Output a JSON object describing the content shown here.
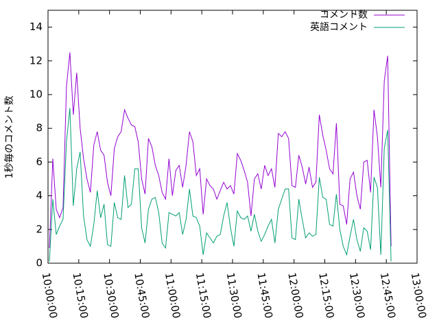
{
  "chart_data": {
    "type": "line",
    "y_label": "1秒毎のコメント数",
    "x": [
      "10:00:40",
      "10:02:20",
      "10:04:00",
      "10:05:40",
      "10:07:20",
      "10:09:00",
      "10:10:40",
      "10:12:20",
      "10:14:00",
      "10:15:40",
      "10:17:20",
      "10:19:00",
      "10:20:40",
      "10:22:20",
      "10:24:00",
      "10:25:40",
      "10:27:20",
      "10:29:00",
      "10:30:40",
      "10:32:20",
      "10:34:00",
      "10:35:40",
      "10:37:20",
      "10:39:00",
      "10:40:40",
      "10:42:20",
      "10:44:00",
      "10:45:40",
      "10:47:20",
      "10:49:00",
      "10:50:40",
      "10:52:20",
      "10:54:00",
      "10:55:40",
      "10:57:20",
      "10:59:00",
      "11:00:40",
      "11:02:20",
      "11:04:00",
      "11:05:40",
      "11:07:20",
      "11:09:00",
      "11:10:40",
      "11:12:20",
      "11:14:00",
      "11:15:40",
      "11:17:20",
      "11:19:00",
      "11:20:40",
      "11:22:20",
      "11:24:00",
      "11:25:40",
      "11:27:20",
      "11:29:00",
      "11:30:40",
      "11:32:20",
      "11:34:00",
      "11:35:40",
      "11:37:20",
      "11:39:00",
      "11:40:40",
      "11:42:20",
      "11:44:00",
      "11:45:40",
      "11:47:20",
      "11:49:00",
      "11:50:40",
      "11:52:20",
      "11:54:00",
      "11:55:40",
      "11:57:20",
      "11:59:00",
      "12:00:40",
      "12:02:20",
      "12:04:00",
      "12:05:40",
      "12:07:20",
      "12:09:00",
      "12:10:40",
      "12:12:20",
      "12:14:00",
      "12:15:40",
      "12:17:20",
      "12:19:00",
      "12:20:40",
      "12:22:20",
      "12:24:00",
      "12:25:40",
      "12:27:20",
      "12:29:00",
      "12:30:40",
      "12:32:20",
      "12:34:00",
      "12:35:40",
      "12:37:20",
      "12:39:00",
      "12:40:40",
      "12:42:20",
      "12:44:00",
      "12:45:40",
      "12:47:20"
    ],
    "series": [
      {
        "name": "コメント数",
        "color": "#9400d3",
        "values": [
          0.9,
          6.2,
          3.2,
          2.7,
          3.3,
          10.5,
          12.5,
          8.8,
          11.3,
          8.0,
          6.2,
          5.0,
          4.2,
          7.0,
          7.8,
          6.7,
          6.4,
          4.8,
          4.0,
          6.8,
          7.5,
          7.8,
          9.1,
          8.6,
          8.2,
          8.1,
          7.2,
          5.0,
          4.1,
          7.4,
          6.9,
          5.8,
          5.2,
          4.2,
          3.8,
          6.2,
          4.0,
          5.5,
          5.8,
          4.5,
          5.8,
          7.8,
          7.2,
          5.2,
          5.6,
          2.9,
          5.0,
          4.6,
          4.4,
          3.8,
          4.3,
          4.8,
          4.4,
          4.6,
          4.1,
          6.5,
          6.1,
          5.5,
          4.8,
          2.8,
          5.0,
          5.3,
          4.4,
          5.8,
          5.2,
          5.6,
          4.5,
          7.7,
          7.5,
          7.8,
          7.4,
          4.6,
          4.5,
          6.4,
          5.7,
          4.7,
          5.7,
          4.5,
          4.8,
          8.8,
          7.6,
          6.7,
          5.6,
          5.3,
          8.3,
          3.5,
          3.4,
          2.3,
          5.0,
          5.4,
          4.0,
          3.2,
          6.0,
          6.1,
          4.2,
          9.1,
          7.5,
          4.5,
          10.8,
          12.3,
          1.0
        ]
      },
      {
        "name": "英語コメント",
        "color": "#009e73",
        "values": [
          0.1,
          3.8,
          1.7,
          2.2,
          2.6,
          7.2,
          9.2,
          3.4,
          5.6,
          6.6,
          2.8,
          1.4,
          1.0,
          2.3,
          4.3,
          2.7,
          3.5,
          1.1,
          1.0,
          3.6,
          2.7,
          2.6,
          5.2,
          3.3,
          3.5,
          5.6,
          5.6,
          2.1,
          1.2,
          3.2,
          3.8,
          3.9,
          3.0,
          1.2,
          0.9,
          3.0,
          2.9,
          2.8,
          3.0,
          1.7,
          2.6,
          4.4,
          2.8,
          2.7,
          2.2,
          0.5,
          1.8,
          1.5,
          1.2,
          1.6,
          1.7,
          2.8,
          3.6,
          2.1,
          1.0,
          3.1,
          2.7,
          2.6,
          2.8,
          1.9,
          2.9,
          1.9,
          1.3,
          1.7,
          2.2,
          2.6,
          1.2,
          3.2,
          3.8,
          4.4,
          4.4,
          1.5,
          1.4,
          3.8,
          2.6,
          1.5,
          1.8,
          1.6,
          1.7,
          5.1,
          3.9,
          3.8,
          2.3,
          2.2,
          4.1,
          2.0,
          1.0,
          0.5,
          1.6,
          2.6,
          1.4,
          0.7,
          2.1,
          1.9,
          0.8,
          5.1,
          4.5,
          0.5,
          6.8,
          7.9,
          0.1
        ]
      }
    ],
    "xlim": [
      "10:00:00",
      "13:00:00"
    ],
    "xticks": [
      "10:00:00",
      "10:15:00",
      "10:30:00",
      "10:45:00",
      "11:00:00",
      "11:15:00",
      "11:30:00",
      "11:45:00",
      "12:00:00",
      "12:15:00",
      "12:30:00",
      "12:45:00",
      "13:00:00"
    ],
    "ylim": [
      0,
      15
    ],
    "yticks": [
      0,
      2,
      4,
      6,
      8,
      10,
      12,
      14
    ],
    "legend": "top-right",
    "grid": false
  }
}
